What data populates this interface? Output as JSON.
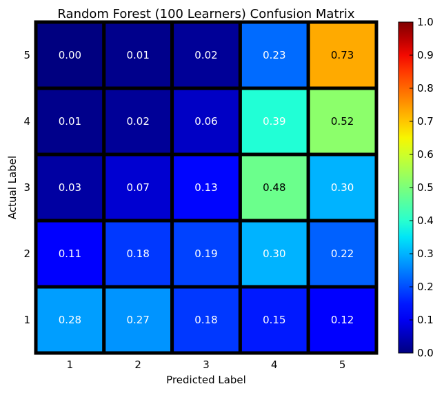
{
  "chart_data": {
    "type": "heatmap",
    "title": "Random Forest (100 Learners) Confusion Matrix",
    "xlabel": "Predicted Label",
    "ylabel": "Actual Label",
    "x_categories": [
      "1",
      "2",
      "3",
      "4",
      "5"
    ],
    "y_categories": [
      "1",
      "2",
      "3",
      "4",
      "5"
    ],
    "rows": [
      {
        "actual": "5",
        "values": [
          0.0,
          0.01,
          0.02,
          0.23,
          0.73
        ],
        "labels": [
          "0.00",
          "0.01",
          "0.02",
          "0.23",
          "0.73"
        ]
      },
      {
        "actual": "4",
        "values": [
          0.01,
          0.02,
          0.06,
          0.39,
          0.52
        ],
        "labels": [
          "0.01",
          "0.02",
          "0.06",
          "0.39",
          "0.52"
        ]
      },
      {
        "actual": "3",
        "values": [
          0.03,
          0.07,
          0.13,
          0.48,
          0.3
        ],
        "labels": [
          "0.03",
          "0.07",
          "0.13",
          "0.48",
          "0.30"
        ]
      },
      {
        "actual": "2",
        "values": [
          0.11,
          0.18,
          0.19,
          0.3,
          0.22
        ],
        "labels": [
          "0.11",
          "0.18",
          "0.19",
          "0.30",
          "0.22"
        ]
      },
      {
        "actual": "1",
        "values": [
          0.28,
          0.27,
          0.18,
          0.15,
          0.12
        ],
        "labels": [
          "0.28",
          "0.27",
          "0.18",
          "0.15",
          "0.12"
        ]
      }
    ],
    "colorbar": {
      "colormap": "jet",
      "range": [
        0.0,
        1.0
      ],
      "ticks": [
        "0.0",
        "0.1",
        "0.2",
        "0.3",
        "0.4",
        "0.5",
        "0.6",
        "0.7",
        "0.8",
        "0.9",
        "1.0"
      ]
    },
    "grid": false,
    "legend": "none"
  }
}
